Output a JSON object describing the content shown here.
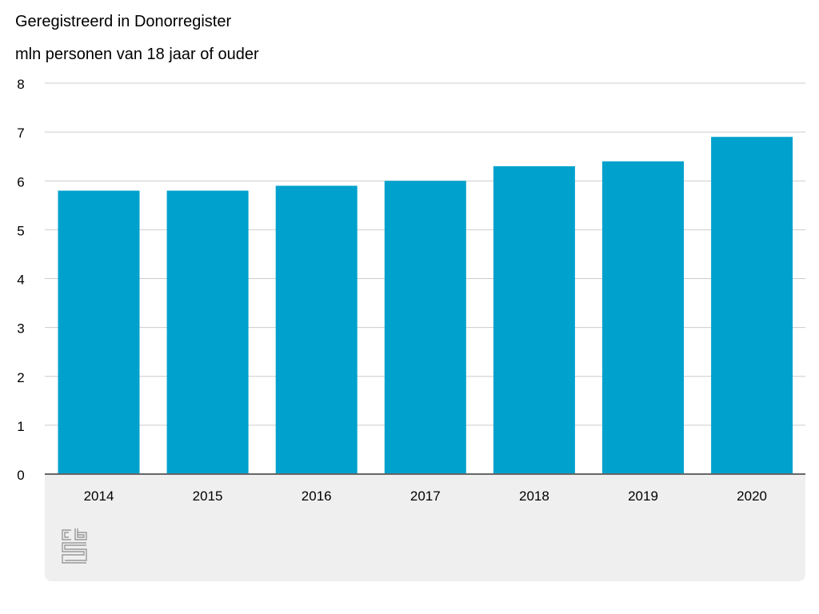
{
  "chart_data": {
    "type": "bar",
    "title": "Geregistreerd in Donorregister",
    "subtitle": "mln personen van 18 jaar of ouder",
    "categories": [
      "2014",
      "2015",
      "2016",
      "2017",
      "2018",
      "2019",
      "2020"
    ],
    "values": [
      5.8,
      5.8,
      5.9,
      6.0,
      6.3,
      6.4,
      6.9
    ],
    "ylim": [
      0,
      8
    ],
    "yticks": [
      "0",
      "1",
      "2",
      "3",
      "4",
      "5",
      "6",
      "7",
      "8"
    ],
    "grid": true,
    "colors": {
      "bar": "#00a1cd",
      "grid": "#cccccc",
      "axis": "#666666"
    }
  },
  "logo": {
    "name": "cbs-logo-icon"
  }
}
